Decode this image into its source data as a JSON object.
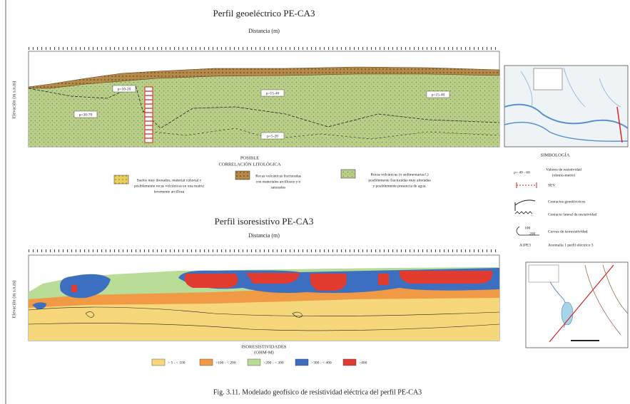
{
  "top_profile": {
    "title": "Perfil geoeléctrico PE-CA3",
    "x_axis": "Distancia (m)",
    "y_axis": "Elevación (m s.n.m)",
    "labels": [
      "ρ=10-20",
      "ρ=30-70",
      "ρ=15-40",
      "ρ=5-20",
      "ρ=15-40"
    ]
  },
  "lithology": {
    "title": "POSIBLE",
    "subtitle": "CORRELACIÓN LITOLÓGICA",
    "items": [
      [
        "Suelos muy drenados, material coluvial y",
        "posiblemente rocas volcánicas en una matriz",
        "levemente arcillosa"
      ],
      [
        "Rocas volcánicas fracturadas",
        "con materiales arcillosos y/o",
        "saturados"
      ],
      [
        "Rocas volcánicas (o sedimentarias?,)",
        "posiblemente fracturadas muy alteradas",
        "y posiblemente presencia de agua."
      ]
    ]
  },
  "symbology": {
    "title": "SIMBOLOGÍA",
    "items": [
      {
        "symbol": "ρ= 40 - 60",
        "label": [
          "Valores de resistividad",
          "(ohmio-metro)"
        ]
      },
      {
        "label": [
          "SEV"
        ]
      },
      {
        "label": [
          "Contactos geoeléctricos"
        ]
      },
      {
        "label": [
          "Contacto lateral de resistividad"
        ]
      },
      {
        "symbol": "100",
        "symbol2": "200",
        "label": [
          "Curvas de isoresistividad"
        ]
      },
      {
        "symbol": "A1PE3",
        "label": [
          "Anomalía 1 perfil eléctrico 3"
        ]
      }
    ]
  },
  "bottom_profile": {
    "title": "Perfil isoresistivo PE-CA3",
    "x_axis": "Distancia (m)",
    "y_axis": "Elevación (m s.n.m)"
  },
  "isoresistivity_legend": {
    "title": "ISORESISTIVIDADES",
    "unit": "(OHM-M)",
    "items": [
      "> 5  - < 100",
      ">100 - < 200",
      ">200 - < 300",
      ">300 - < 400",
      ">400"
    ]
  },
  "caption": "Fig. 3.11. Modelado geofísico de resistividad eléctrica del perfil PE-CA3"
}
